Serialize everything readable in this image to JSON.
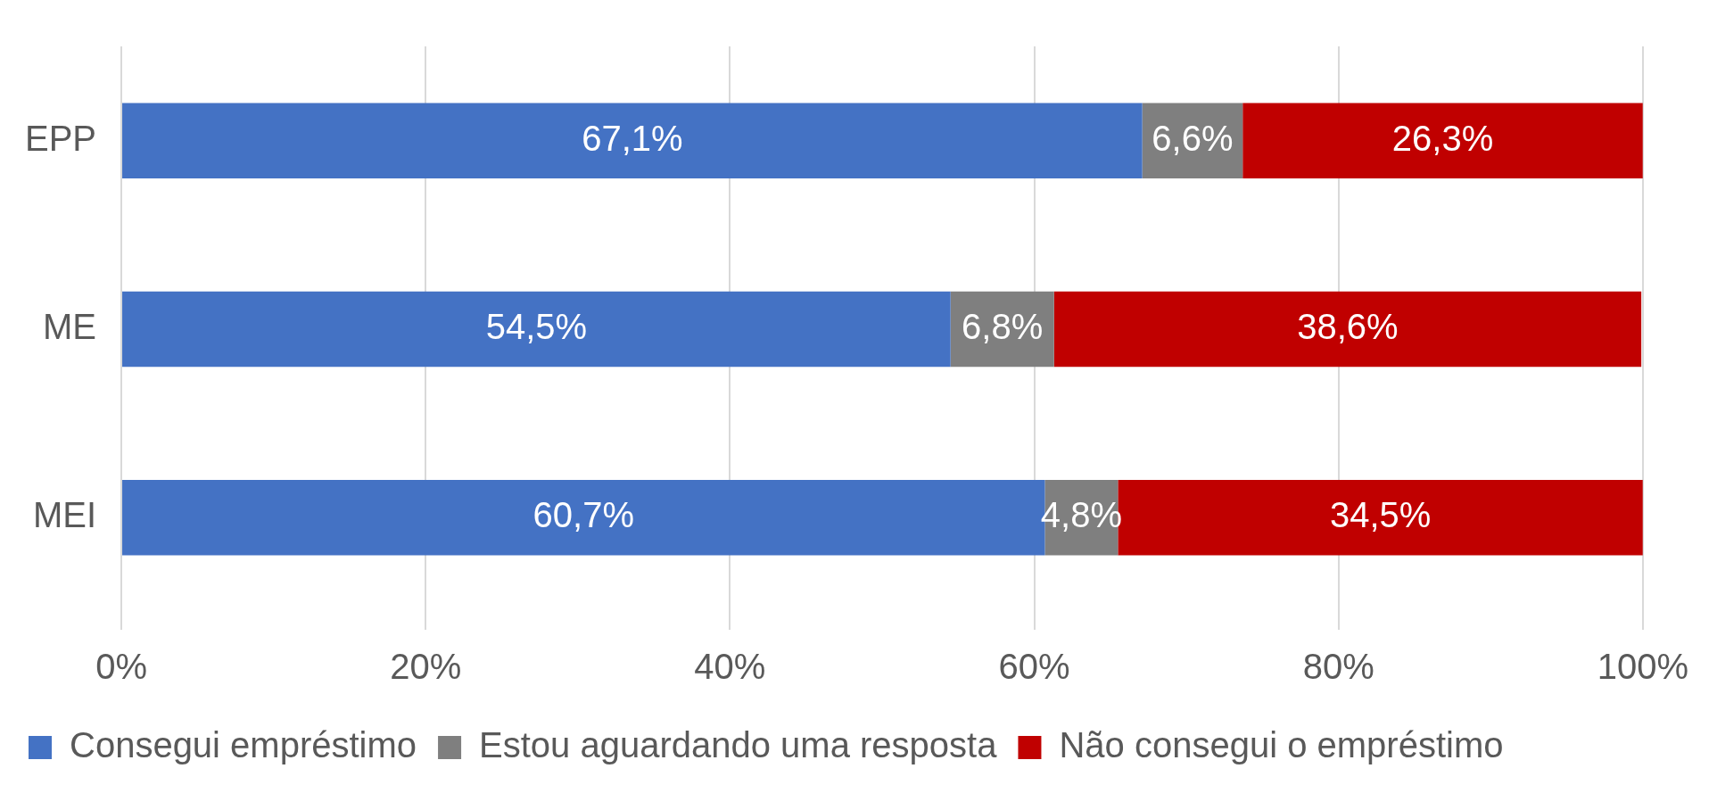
{
  "chart_data": {
    "type": "bar",
    "orientation": "horizontal",
    "stacked": true,
    "categories": [
      "EPP",
      "ME",
      "MEI"
    ],
    "series": [
      {
        "name": "Consegui empréstimo",
        "color": "#4472c4",
        "values": [
          67.1,
          54.5,
          60.7
        ],
        "value_labels": [
          "67,1%",
          "54,5%",
          "60,7%"
        ]
      },
      {
        "name": "Estou aguardando uma resposta",
        "color": "#7f7f7f",
        "values": [
          6.6,
          6.8,
          4.8
        ],
        "value_labels": [
          "6,6%",
          "6,8%",
          "4,8%"
        ]
      },
      {
        "name": "Não consegui o empréstimo",
        "color": "#c00000",
        "values": [
          26.3,
          38.6,
          34.5
        ],
        "value_labels": [
          "26,3%",
          "38,6%",
          "34,5%"
        ]
      }
    ],
    "xlim": [
      0,
      100
    ],
    "xticks": [
      {
        "value": 0,
        "label": "0%"
      },
      {
        "value": 20,
        "label": "20%"
      },
      {
        "value": 40,
        "label": "40%"
      },
      {
        "value": 60,
        "label": "60%"
      },
      {
        "value": 80,
        "label": "80%"
      },
      {
        "value": 100,
        "label": "100%"
      }
    ],
    "grid": "x",
    "legend": "bottom"
  }
}
